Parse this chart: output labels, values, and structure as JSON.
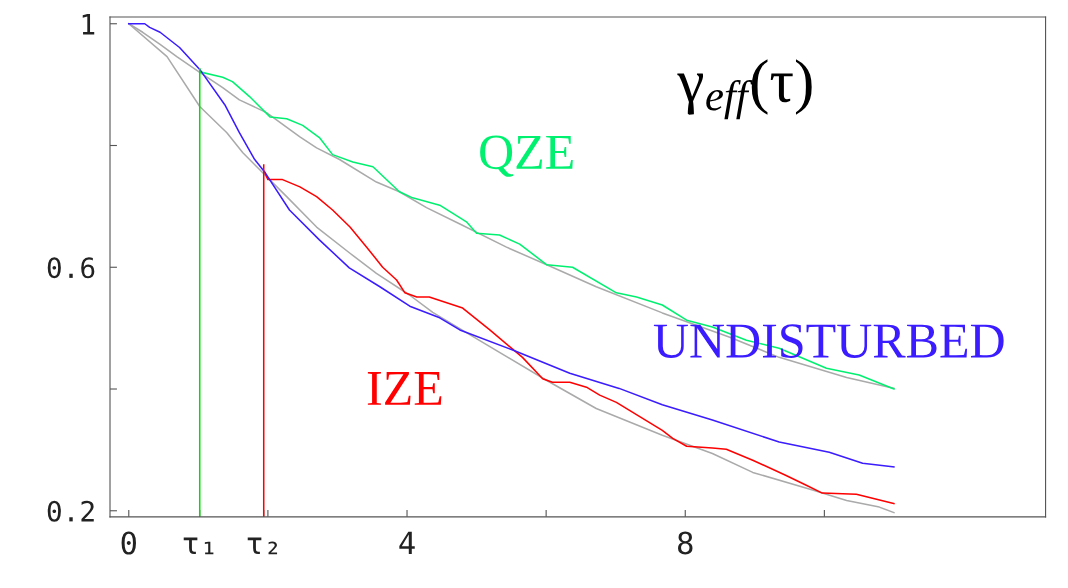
{
  "chart_data": {
    "type": "line",
    "xlim": [
      -0.27,
      13.18
    ],
    "ylim": [
      0.19,
      1.011
    ],
    "xticks": [
      0,
      {
        "value": 1.02,
        "label": "τ₁"
      },
      {
        "value": 1.94,
        "label": "τ₂"
      },
      {
        "value": 2,
        "label": null
      },
      4,
      {
        "value": 6,
        "label": null
      },
      8,
      {
        "value": 10,
        "label": null
      }
    ],
    "yticks": [
      {
        "value": 0.2,
        "label": "0.2"
      },
      {
        "value": 0.4,
        "label": null
      },
      {
        "value": 0.6,
        "label": "0.6"
      },
      {
        "value": 0.8,
        "label": null
      },
      1
    ],
    "grid": false,
    "legend": false,
    "series": [
      {
        "color": "#aaaaaa",
        "x": [
          0,
          0.2,
          0.45,
          0.69,
          1.02,
          1.35,
          1.59,
          1.98,
          2.46,
          2.7,
          3.03,
          3.56,
          3.89,
          4.28,
          4.76,
          5.43,
          6.09,
          6.72,
          7.67,
          8.64,
          9.35,
          10.32,
          11.0
        ],
        "values": [
          1.0,
          0.986,
          0.966,
          0.946,
          0.92,
          0.895,
          0.875,
          0.854,
          0.814,
          0.796,
          0.777,
          0.74,
          0.724,
          0.698,
          0.671,
          0.633,
          0.6,
          0.568,
          0.525,
          0.485,
          0.452,
          0.419,
          0.401
        ]
      },
      {
        "color": "#aaaaaa",
        "x": [
          0,
          0.55,
          1.02,
          1.41,
          1.64,
          1.98,
          2.27,
          2.7,
          3.18,
          3.56,
          4.04,
          4.37,
          5.04,
          6.01,
          6.72,
          7.67,
          8.39,
          8.97,
          9.83,
          10.32,
          10.79,
          11.0
        ],
        "values": [
          1.0,
          0.946,
          0.864,
          0.821,
          0.788,
          0.749,
          0.716,
          0.666,
          0.623,
          0.59,
          0.554,
          0.526,
          0.48,
          0.414,
          0.368,
          0.324,
          0.294,
          0.263,
          0.234,
          0.217,
          0.206,
          0.197
        ]
      },
      {
        "name": "QZE",
        "color": "#00f070",
        "x": [
          1.02,
          1.35,
          1.49,
          1.74,
          2.03,
          2.27,
          2.5,
          2.74,
          2.93,
          3.22,
          3.51,
          3.89,
          4.08,
          4.47,
          4.86,
          5.0,
          5.33,
          5.62,
          6.01,
          6.38,
          7.01,
          7.3,
          7.67,
          8.02,
          8.39,
          8.88,
          9.35,
          10.03,
          10.5,
          11.0
        ],
        "values": [
          0.921,
          0.912,
          0.905,
          0.88,
          0.847,
          0.844,
          0.833,
          0.813,
          0.785,
          0.773,
          0.765,
          0.724,
          0.714,
          0.702,
          0.674,
          0.656,
          0.653,
          0.638,
          0.604,
          0.6,
          0.558,
          0.551,
          0.538,
          0.513,
          0.502,
          0.48,
          0.467,
          0.434,
          0.423,
          0.4
        ]
      },
      {
        "name": "IZE",
        "color": "#ff0000",
        "x": [
          1.95,
          2.0,
          2.21,
          2.46,
          2.7,
          2.93,
          3.18,
          3.42,
          3.65,
          3.85,
          3.97,
          4.14,
          4.32,
          4.8,
          5.19,
          5.66,
          5.95,
          6.09,
          6.34,
          6.58,
          6.77,
          7.01,
          7.67,
          7.82,
          8.02,
          8.39,
          8.59,
          8.97,
          9.45,
          9.74,
          9.97,
          10.46,
          11.0
        ],
        "values": [
          0.757,
          0.744,
          0.744,
          0.732,
          0.716,
          0.694,
          0.666,
          0.633,
          0.6,
          0.579,
          0.558,
          0.551,
          0.551,
          0.533,
          0.497,
          0.452,
          0.417,
          0.411,
          0.411,
          0.403,
          0.39,
          0.378,
          0.332,
          0.319,
          0.306,
          0.303,
          0.301,
          0.283,
          0.258,
          0.242,
          0.229,
          0.227,
          0.212
        ]
      },
      {
        "name": "UNDISTURBED",
        "color": "#3a1cff",
        "x": [
          0,
          0.23,
          0.3,
          0.45,
          0.73,
          1.02,
          1.38,
          1.59,
          1.81,
          1.95,
          2.31,
          2.74,
          3.17,
          3.61,
          4.04,
          4.47,
          4.76,
          5.52,
          6.34,
          7.05,
          7.67,
          8.39,
          9.35,
          10.07,
          10.55,
          11.0
        ],
        "values": [
          1.0,
          1.0,
          0.994,
          0.986,
          0.961,
          0.925,
          0.867,
          0.821,
          0.777,
          0.757,
          0.694,
          0.645,
          0.599,
          0.568,
          0.536,
          0.517,
          0.497,
          0.464,
          0.426,
          0.401,
          0.374,
          0.349,
          0.313,
          0.296,
          0.278,
          0.272
        ]
      },
      {
        "color": "#00e000",
        "x": [
          1.02,
          1.02
        ],
        "values": [
          0.19,
          0.926
        ]
      },
      {
        "color": "#ff0000",
        "x": [
          1.94,
          1.94
        ],
        "values": [
          0.19,
          0.768
        ]
      }
    ],
    "title": "γ$_{eff}$(τ)"
  }
}
